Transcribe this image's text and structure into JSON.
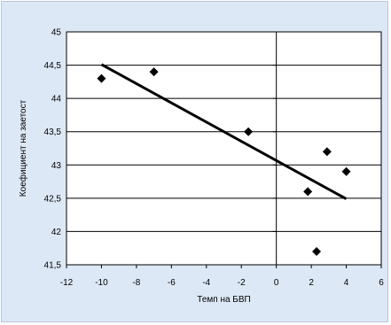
{
  "chart_data": {
    "type": "scatter",
    "title": "",
    "xlabel": "Темп на БВП",
    "ylabel": "Коефициент на заетост",
    "xlim": [
      -12,
      6
    ],
    "ylim": [
      41.5,
      45
    ],
    "x_ticks": [
      "-12",
      "-10",
      "-8",
      "-6",
      "-4",
      "-2",
      "0",
      "2",
      "4",
      "6"
    ],
    "y_ticks": [
      "41,5",
      "42",
      "42,5",
      "43",
      "43,5",
      "44",
      "44,5",
      "45"
    ],
    "grid": "horizontal",
    "legend": "none",
    "points": [
      {
        "x": -10,
        "y": 44.3
      },
      {
        "x": -7,
        "y": 44.4
      },
      {
        "x": -1.6,
        "y": 43.5
      },
      {
        "x": 1.8,
        "y": 42.6
      },
      {
        "x": 2.3,
        "y": 41.7
      },
      {
        "x": 2.9,
        "y": 43.2
      },
      {
        "x": 4,
        "y": 42.9
      }
    ],
    "trendline": {
      "type": "linear",
      "x": [
        -10,
        4
      ],
      "y": [
        44.51,
        42.49
      ]
    },
    "colors": {
      "background": "#dde8f6",
      "plot_area": "#ffffff",
      "markers": "#000000",
      "trendline": "#000000"
    }
  }
}
